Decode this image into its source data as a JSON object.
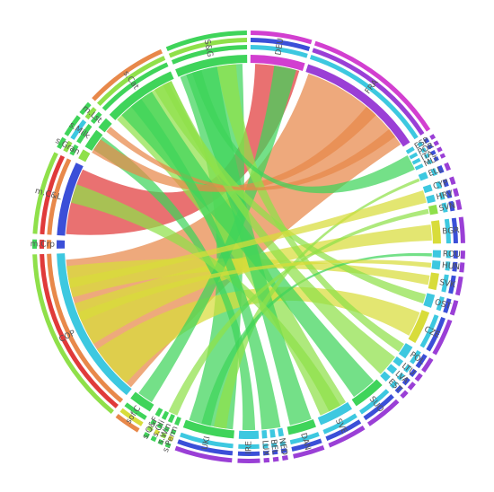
{
  "diagram": {
    "type": "chord",
    "colors": {
      "red": "#e03a3a",
      "orange": "#e8884a",
      "yellow": "#d8dc3a",
      "lime": "#8fe04a",
      "green": "#3fd45a",
      "cyan": "#3dc8e0",
      "blue": "#3b4fd8",
      "purple": "#9a3fd6",
      "magenta": "#d23fd0"
    },
    "segments": [
      {
        "id": "DEU",
        "label": "DEU",
        "a0": 0.5,
        "a1": 17,
        "color": "magenta",
        "rings": [
          "cyan",
          "blue",
          "magenta"
        ]
      },
      {
        "id": "FRA",
        "label": "FRA",
        "a0": 18,
        "a1": 57,
        "color": "purple",
        "rings": [
          "cyan",
          "purple",
          "magenta"
        ]
      },
      {
        "id": "ESP",
        "label": "ESP",
        "a0": 58.5,
        "a1": 59.7,
        "color": "cyan",
        "rings": [
          "cyan",
          "blue",
          "purple"
        ]
      },
      {
        "id": "POR",
        "label": "POR",
        "a0": 60.5,
        "a1": 61.6,
        "color": "cyan",
        "rings": [
          "cyan",
          "blue",
          "purple"
        ]
      },
      {
        "id": "ITA",
        "label": "ITA",
        "a0": 62.4,
        "a1": 63.5,
        "color": "cyan",
        "rings": [
          "cyan",
          "blue",
          "purple"
        ]
      },
      {
        "id": "MLT",
        "label": "MLT",
        "a0": 64.3,
        "a1": 65.4,
        "color": "cyan",
        "rings": [
          "cyan",
          "blue",
          "purple"
        ]
      },
      {
        "id": "ELL",
        "label": "ELL",
        "a0": 67,
        "a1": 69,
        "color": "cyan",
        "rings": [
          "cyan",
          "blue",
          "purple"
        ]
      },
      {
        "id": "CYP",
        "label": "CYP",
        "a0": 71,
        "a1": 73,
        "color": "cyan",
        "rings": [
          "cyan",
          "blue",
          "purple"
        ]
      },
      {
        "id": "HRV",
        "label": "HRV",
        "a0": 74.2,
        "a1": 76.3,
        "color": "cyan",
        "rings": [
          "cyan",
          "blue",
          "purple"
        ]
      },
      {
        "id": "SVN",
        "label": "SVN",
        "a0": 77.3,
        "a1": 80,
        "color": "lime",
        "rings": [
          "cyan",
          "blue",
          "purple"
        ]
      },
      {
        "id": "BGR",
        "label": "BGR",
        "a0": 82,
        "a1": 89,
        "color": "yellow",
        "rings": [
          "cyan",
          "blue",
          "purple"
        ]
      },
      {
        "id": "ROU",
        "label": "ROU",
        "a0": 91,
        "a1": 93.2,
        "color": "cyan",
        "rings": [
          "cyan",
          "blue",
          "purple"
        ]
      },
      {
        "id": "HUN",
        "label": "HUN",
        "a0": 94.2,
        "a1": 96.8,
        "color": "cyan",
        "rings": [
          "cyan",
          "blue",
          "purple"
        ]
      },
      {
        "id": "SVK",
        "label": "SVK",
        "a0": 98,
        "a1": 103,
        "color": "yellow",
        "rings": [
          "cyan",
          "blue",
          "purple"
        ]
      },
      {
        "id": "OST",
        "label": "OST",
        "a0": 104.5,
        "a1": 108.5,
        "color": "cyan",
        "rings": [
          "cyan",
          "blue",
          "purple"
        ]
      },
      {
        "id": "CZE",
        "label": "CZE",
        "a0": 110,
        "a1": 120,
        "color": "yellow",
        "rings": [
          "cyan",
          "blue",
          "purple"
        ]
      },
      {
        "id": "POL",
        "label": "POL",
        "a0": 121.5,
        "a1": 125.5,
        "color": "cyan",
        "rings": [
          "cyan",
          "blue",
          "purple"
        ]
      },
      {
        "id": "LTU",
        "label": "LTU",
        "a0": 126.5,
        "a1": 128.5,
        "color": "cyan",
        "rings": [
          "cyan",
          "blue",
          "purple"
        ]
      },
      {
        "id": "LVA",
        "label": "LVA",
        "a0": 129.5,
        "a1": 131.5,
        "color": "cyan",
        "rings": [
          "cyan",
          "blue",
          "purple"
        ]
      },
      {
        "id": "EST",
        "label": "EST",
        "a0": 132.5,
        "a1": 134.5,
        "color": "cyan",
        "rings": [
          "cyan",
          "blue",
          "purple"
        ]
      },
      {
        "id": "SUO",
        "label": "SUO",
        "a0": 136,
        "a1": 146,
        "color": "green",
        "rings": [
          "cyan",
          "blue",
          "purple"
        ]
      },
      {
        "id": "SVE",
        "label": "SVE",
        "a0": 147.5,
        "a1": 158,
        "color": "cyan",
        "rings": [
          "cyan",
          "blue",
          "purple"
        ]
      },
      {
        "id": "DAN",
        "label": "DAN",
        "a0": 159.5,
        "a1": 168,
        "color": "green",
        "rings": [
          "cyan",
          "blue",
          "purple"
        ]
      },
      {
        "id": "NED",
        "label": "NED",
        "a0": 169.5,
        "a1": 171,
        "color": "cyan",
        "rings": [
          "cyan",
          "blue",
          "purple"
        ]
      },
      {
        "id": "BEL",
        "label": "BEL",
        "a0": 172,
        "a1": 173.5,
        "color": "cyan",
        "rings": [
          "cyan",
          "blue",
          "purple"
        ]
      },
      {
        "id": "LUX",
        "label": "LUX",
        "a0": 174.5,
        "a1": 176,
        "color": "cyan",
        "rings": [
          "cyan",
          "blue",
          "purple"
        ]
      },
      {
        "id": "IRE",
        "label": "IRE",
        "a0": 177,
        "a1": 183,
        "color": "cyan",
        "rings": [
          "cyan",
          "blue",
          "purple"
        ]
      },
      {
        "id": "UKI",
        "label": "UKI",
        "a0": 184.5,
        "a1": 200,
        "color": "green",
        "rings": [
          "cyan",
          "blue",
          "purple"
        ]
      },
      {
        "id": "s.Perm",
        "label": "s.Perm",
        "a0": 201.5,
        "a1": 202.8,
        "color": "green",
        "rings": [
          "green",
          "yellow",
          "green"
        ]
      },
      {
        "id": "s.Win",
        "label": "s.Win",
        "a0": 203.6,
        "a1": 204.9,
        "color": "green",
        "rings": [
          "green",
          "lime",
          "green"
        ]
      },
      {
        "id": "s.Oli",
        "label": "s.Oli",
        "a0": 205.7,
        "a1": 207,
        "color": "green",
        "rings": [
          "green",
          "yellow",
          "green"
        ]
      },
      {
        "id": "s.Q&F",
        "label": "s.Q&F",
        "a0": 207.8,
        "a1": 209.2,
        "color": "green",
        "rings": [
          "green",
          "lime",
          "green"
        ]
      },
      {
        "id": "sof.C",
        "label": "sof.C",
        "a0": 211,
        "a1": 218,
        "color": "green",
        "rings": [
          "green",
          "yellow",
          "orange"
        ]
      },
      {
        "id": "COP",
        "label": "COP",
        "a0": 219.5,
        "a1": 268,
        "color": "cyan",
        "rings": [
          "orange",
          "red",
          "lime"
        ]
      },
      {
        "id": "m.Crp",
        "label": "m.Crp",
        "a0": 269.5,
        "a1": 272,
        "color": "blue",
        "rings": [
          "orange",
          "red",
          "green"
        ]
      },
      {
        "id": "m.C&L",
        "label": "m.C&L",
        "a0": 273.5,
        "a1": 296,
        "color": "blue",
        "rings": [
          "orange",
          "red",
          "lime"
        ]
      },
      {
        "id": "s.Gran",
        "label": "s.Gran",
        "a0": 297.5,
        "a1": 300.5,
        "color": "lime",
        "rings": [
          "green",
          "lime",
          "green"
        ]
      },
      {
        "id": "s.Milk",
        "label": "s.Milk",
        "a0": 301.5,
        "a1": 307.5,
        "color": "green",
        "rings": [
          "green",
          "cyan",
          "green"
        ]
      },
      {
        "id": "m.Lst",
        "label": "m.Lst",
        "a0": 308.5,
        "a1": 312,
        "color": "green",
        "rings": [
          "green",
          "lime",
          "green"
        ]
      },
      {
        "id": "s.Cat",
        "label": "s.Cat",
        "a0": 313.5,
        "a1": 336,
        "color": "green",
        "rings": [
          "green",
          "lime",
          "orange"
        ]
      },
      {
        "id": "S&G",
        "label": "S&G",
        "a0": 337.5,
        "a1": 359.5,
        "color": "green",
        "rings": [
          "green",
          "lime",
          "green"
        ]
      }
    ],
    "chords": [
      {
        "a": [
          19,
          56
        ],
        "b": [
          220,
          266
        ],
        "color": "orange"
      },
      {
        "a": [
          2,
          16
        ],
        "b": [
          274,
          295
        ],
        "color": "red"
      },
      {
        "a": [
          338,
          358
        ],
        "b": [
          185,
          199
        ],
        "color": "green"
      },
      {
        "a": [
          314,
          335
        ],
        "b": [
          148,
          157
        ],
        "color": "lime"
      },
      {
        "a": [
          111,
          119
        ],
        "b": [
          222,
          236
        ],
        "color": "yellow"
      },
      {
        "a": [
          83,
          88
        ],
        "b": [
          238,
          252
        ],
        "color": "yellow"
      },
      {
        "a": [
          99,
          102
        ],
        "b": [
          254,
          264
        ],
        "color": "yellow"
      },
      {
        "a": [
          137,
          145
        ],
        "b": [
          316,
          328
        ],
        "color": "green"
      },
      {
        "a": [
          160,
          167
        ],
        "b": [
          340,
          350
        ],
        "color": "green"
      },
      {
        "a": [
          178,
          182
        ],
        "b": [
          302,
          307
        ],
        "color": "green"
      },
      {
        "a": [
          8,
          15
        ],
        "b": [
          212,
          217
        ],
        "color": "green"
      },
      {
        "a": [
          40,
          44
        ],
        "b": [
          301,
          306
        ],
        "color": "orange"
      },
      {
        "a": [
          105,
          108
        ],
        "b": [
          329,
          334
        ],
        "color": "lime"
      },
      {
        "a": [
          122,
          125
        ],
        "b": [
          350,
          356
        ],
        "color": "lime"
      },
      {
        "a": [
          68,
          69
        ],
        "b": [
          187,
          191
        ],
        "color": "lime"
      },
      {
        "a": [
          92,
          93
        ],
        "b": [
          192,
          195
        ],
        "color": "green"
      },
      {
        "a": [
          78,
          79.5
        ],
        "b": [
          203,
          206
        ],
        "color": "lime"
      },
      {
        "a": [
          50,
          53
        ],
        "b": [
          309,
          311
        ],
        "color": "orange"
      },
      {
        "a": [
          150,
          154
        ],
        "b": [
          284,
          290
        ],
        "color": "lime"
      },
      {
        "a": [
          170,
          176
        ],
        "b": [
          320,
          324
        ],
        "color": "green"
      },
      {
        "a": [
          127,
          134
        ],
        "b": [
          332,
          335
        ],
        "color": "lime"
      },
      {
        "a": [
          95,
          96.5
        ],
        "b": [
          246,
          249
        ],
        "color": "yellow"
      },
      {
        "a": [
          72,
          76
        ],
        "b": [
          257,
          260
        ],
        "color": "yellow"
      },
      {
        "a": [
          60,
          65
        ],
        "b": [
          342,
          345
        ],
        "color": "green"
      }
    ]
  }
}
